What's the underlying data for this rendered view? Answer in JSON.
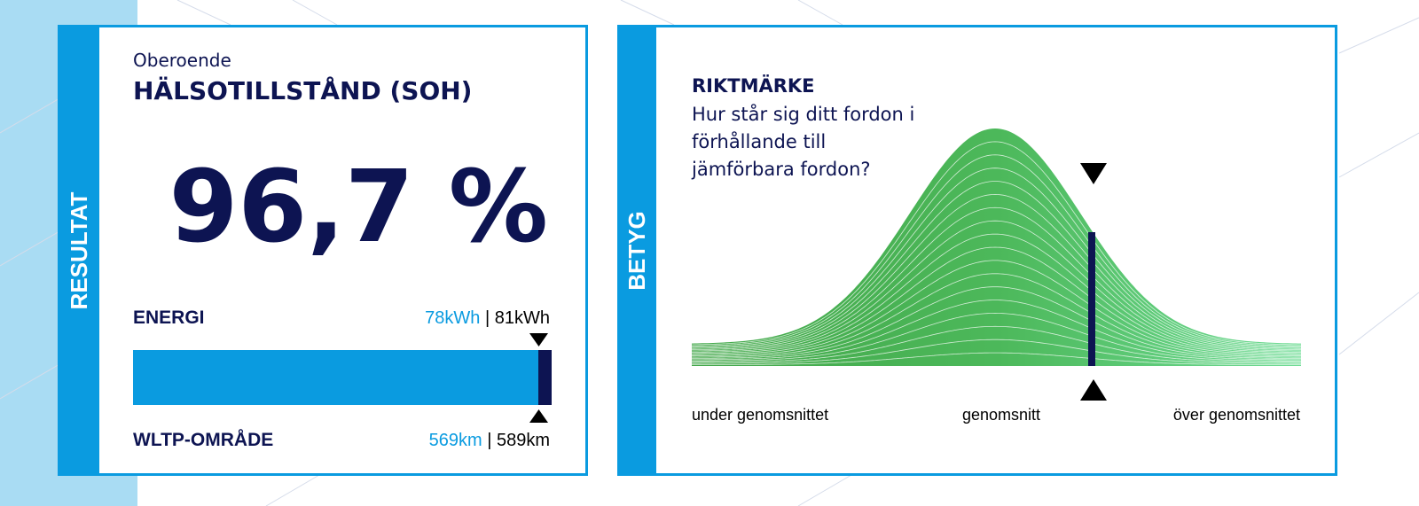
{
  "resultat": {
    "side_label": "RESULTAT",
    "subtitle": "Oberoende",
    "title": "HÄLSOTILLSTÅND (SOH)",
    "value": "96,7 %",
    "energy": {
      "label": "ENERGI",
      "measured": "78kWh",
      "separator": "|",
      "nominal": "81kWh"
    },
    "range": {
      "label": "WLTP-OMRÅDE",
      "measured": "569km",
      "separator": "|",
      "nominal": "589km"
    }
  },
  "betyg": {
    "side_label": "BETYG",
    "title": "RIKTMÄRKE",
    "question_lines": [
      "Hur står sig ditt fordon i",
      "förhållande till",
      "jämförbara fordon?"
    ],
    "scale_labels": [
      "under genomsnittet",
      "genomsnitt",
      "över genomsnittet"
    ]
  }
}
